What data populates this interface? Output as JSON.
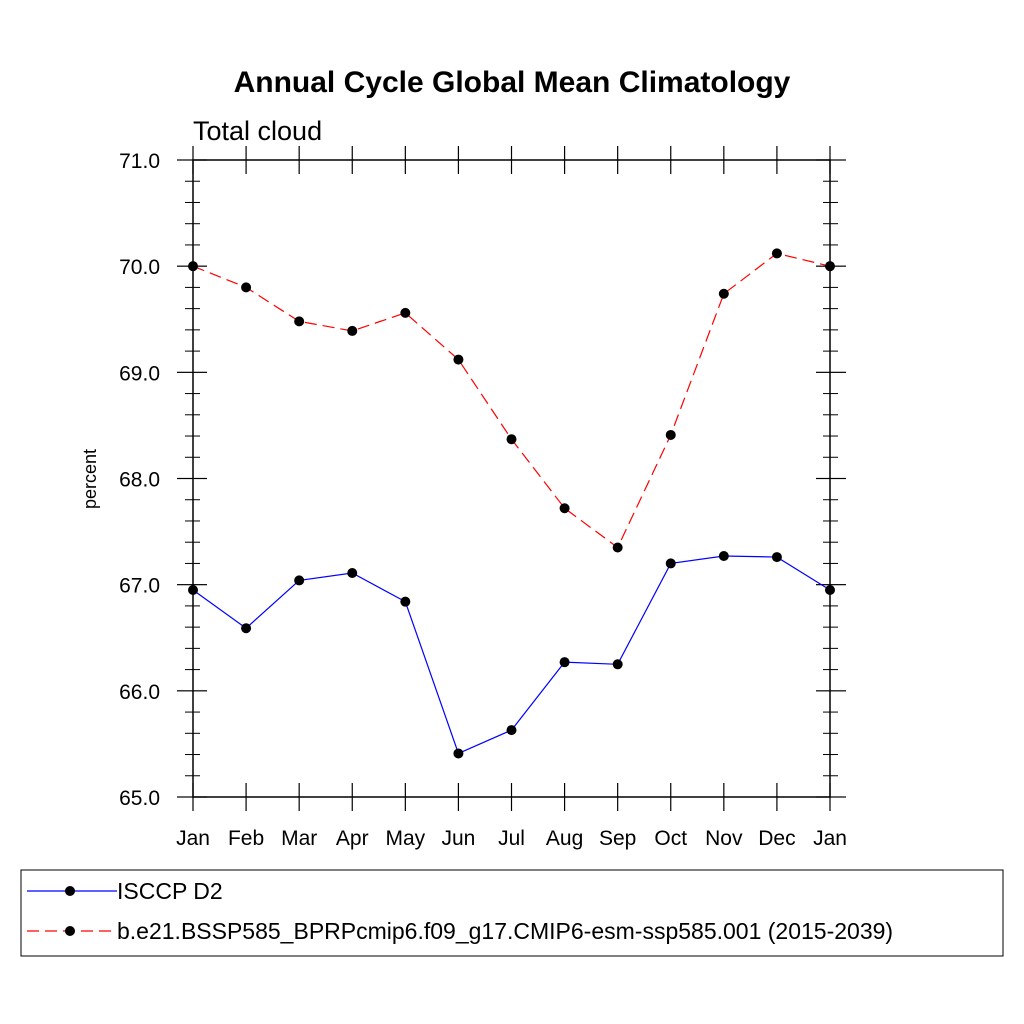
{
  "chart_data": {
    "type": "line",
    "title": "Annual Cycle Global Mean Climatology",
    "subtitle": "Total cloud",
    "xlabel": "",
    "ylabel": "percent",
    "categories": [
      "Jan",
      "Feb",
      "Mar",
      "Apr",
      "May",
      "Jun",
      "Jul",
      "Aug",
      "Sep",
      "Oct",
      "Nov",
      "Dec",
      "Jan"
    ],
    "ylim": [
      65.0,
      71.0
    ],
    "yticks": [
      "65.0",
      "66.0",
      "67.0",
      "68.0",
      "69.0",
      "70.0",
      "71.0"
    ],
    "series": [
      {
        "name": "ISCCP D2",
        "color": "#0000ff",
        "dash": "solid",
        "values": [
          66.95,
          66.59,
          67.04,
          67.11,
          66.84,
          65.41,
          65.63,
          66.27,
          66.25,
          67.2,
          67.27,
          67.26,
          66.95
        ]
      },
      {
        "name": "b.e21.BSSP585_BPRPcmip6.f09_g17.CMIP6-esm-ssp585.001 (2015-2039)",
        "color": "#ff0000",
        "dash": "dashed",
        "values": [
          70.0,
          69.8,
          69.48,
          69.39,
          69.56,
          69.12,
          68.37,
          67.72,
          67.35,
          68.41,
          69.74,
          70.12,
          70.0
        ]
      }
    ],
    "legend_position": "bottom"
  }
}
